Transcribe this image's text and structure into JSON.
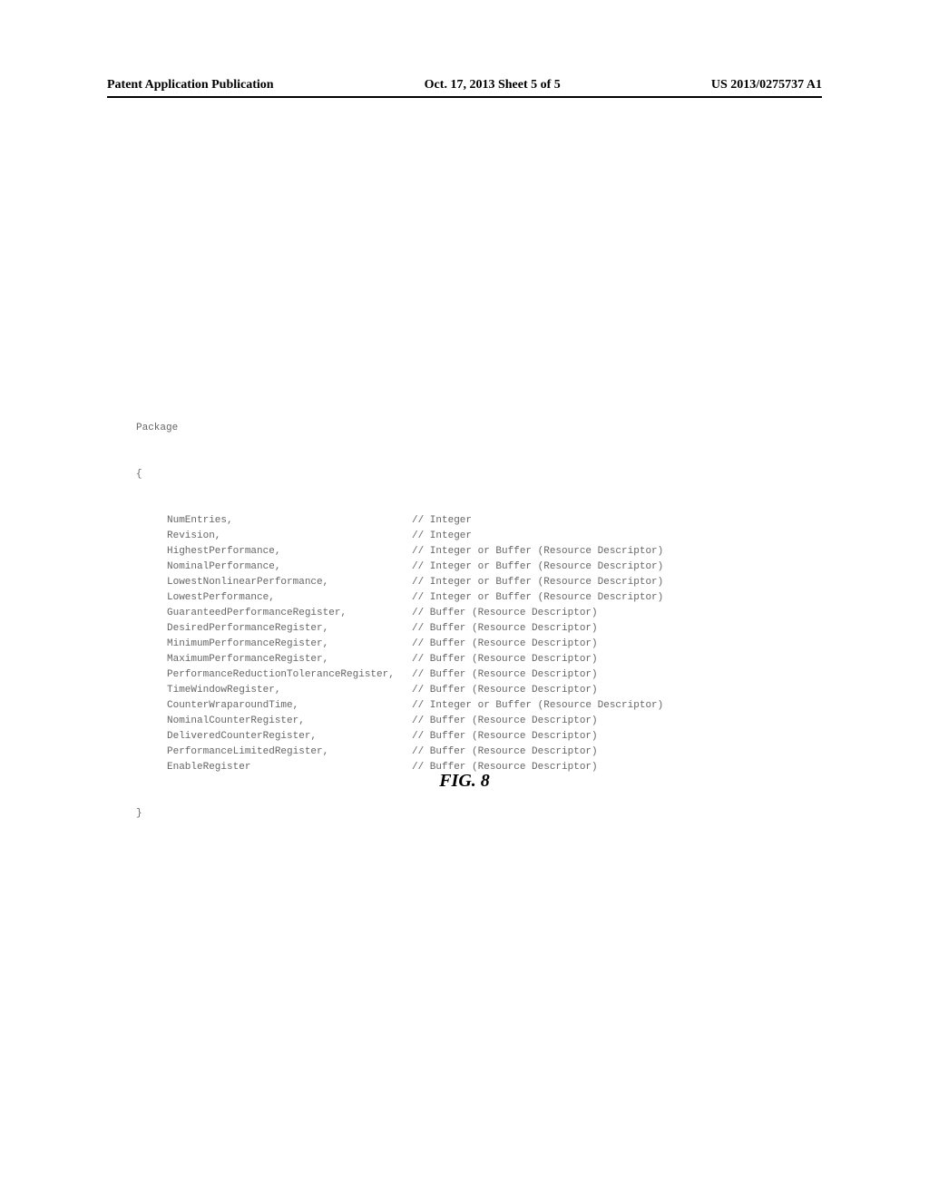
{
  "header": {
    "left": "Patent Application Publication",
    "center": "Oct. 17, 2013  Sheet 5 of 5",
    "right": "US 2013/0275737 A1"
  },
  "code": {
    "package_keyword": "Package",
    "open_brace": "{",
    "close_brace": "}",
    "entries": [
      {
        "name": "NumEntries,",
        "comment": "// Integer"
      },
      {
        "name": "Revision,",
        "comment": "// Integer"
      },
      {
        "name": "HighestPerformance,",
        "comment": "// Integer or Buffer (Resource Descriptor)"
      },
      {
        "name": "NominalPerformance,",
        "comment": "// Integer or Buffer (Resource Descriptor)"
      },
      {
        "name": "LowestNonlinearPerformance,",
        "comment": "// Integer or Buffer (Resource Descriptor)"
      },
      {
        "name": "LowestPerformance,",
        "comment": "// Integer or Buffer (Resource Descriptor)"
      },
      {
        "name": "GuaranteedPerformanceRegister,",
        "comment": "// Buffer (Resource Descriptor)"
      },
      {
        "name": "DesiredPerformanceRegister,",
        "comment": "// Buffer (Resource Descriptor)"
      },
      {
        "name": "MinimumPerformanceRegister,",
        "comment": "// Buffer (Resource Descriptor)"
      },
      {
        "name": "MaximumPerformanceRegister,",
        "comment": "// Buffer (Resource Descriptor)"
      },
      {
        "name": "PerformanceReductionToleranceRegister,",
        "comment": "// Buffer (Resource Descriptor)"
      },
      {
        "name": "TimeWindowRegister,",
        "comment": "// Buffer (Resource Descriptor)"
      },
      {
        "name": "CounterWraparoundTime,",
        "comment": "// Integer or Buffer (Resource Descriptor)"
      },
      {
        "name": "NominalCounterRegister,",
        "comment": "// Buffer (Resource Descriptor)"
      },
      {
        "name": "DeliveredCounterRegister,",
        "comment": "// Buffer (Resource Descriptor)"
      },
      {
        "name": "PerformanceLimitedRegister,",
        "comment": "// Buffer (Resource Descriptor)"
      },
      {
        "name": "EnableRegister",
        "comment": "// Buffer (Resource Descriptor)"
      }
    ]
  },
  "figure_label": "FIG. 8"
}
